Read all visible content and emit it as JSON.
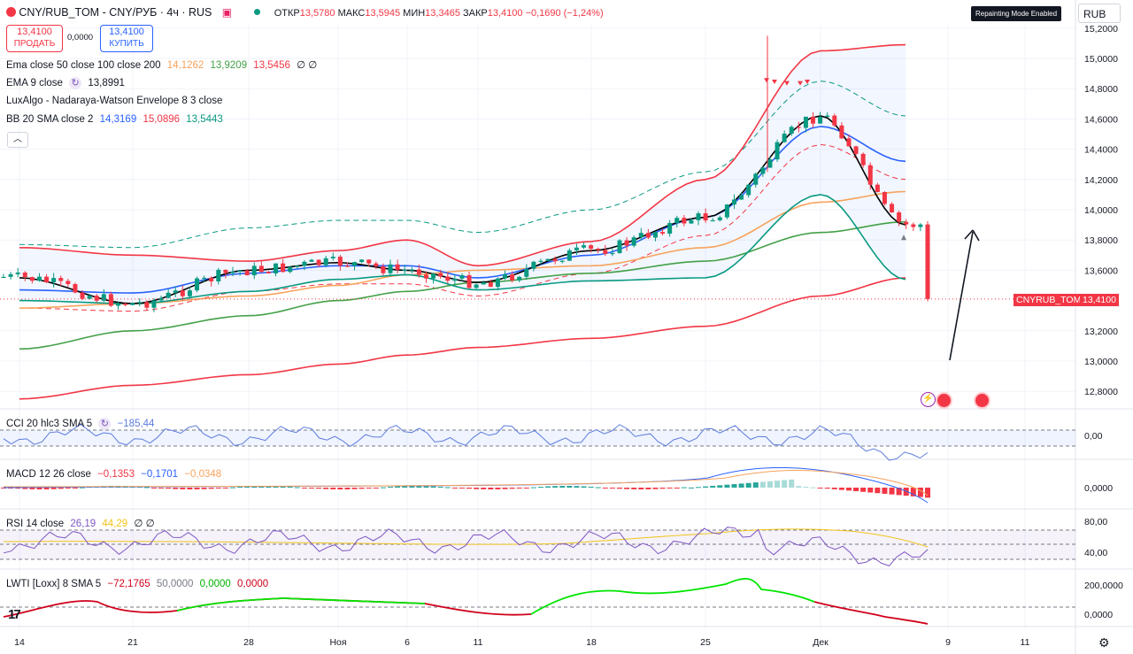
{
  "header": {
    "symbol_title": "CNY/RUB_TOM - CNY/РУБ · 4ч · RUS",
    "open_label": "ОТКР",
    "open": "13,5780",
    "high_label": "МАКС",
    "high": "13,5945",
    "low_label": "МИН",
    "low": "13,3465",
    "close_label": "ЗАКР",
    "close": "13,4100",
    "change": "−0,1690 (−1,24%)"
  },
  "trade": {
    "sell_price": "13,4100",
    "sell_label": "ПРОДАТЬ",
    "spread": "0,0000",
    "buy_price": "13,4100",
    "buy_label": "КУПИТЬ"
  },
  "indicators": {
    "ema": {
      "label": "Ema close 50 close 100 close 200",
      "v1": "14,1262",
      "v2": "13,9209",
      "v3": "13,5456",
      "v4": "∅ ∅"
    },
    "ema9": {
      "label": "EMA 9 close",
      "value": "13,8991"
    },
    "lux": {
      "label": "LuxAlgo - Nadaraya-Watson Envelope 8 3 close"
    },
    "bb": {
      "label": "BB 20 SMA close 2",
      "v1": "14,3169",
      "v2": "15,0896",
      "v3": "13,5443"
    }
  },
  "collapse_icon": "chevron-up-icon",
  "repaint_badge": "Repainting Mode Enabled",
  "currency_select": "RUB",
  "price_axis": {
    "ticks": [
      "15,2000",
      "15,0000",
      "14,8000",
      "14,6000",
      "14,4000",
      "14,2000",
      "14,0000",
      "13,8000",
      "13,6000",
      "13,2000",
      "13,0000",
      "12,8000"
    ]
  },
  "symbol_tag": "CNYRUB_TOM",
  "last_price_tag": "13,4100",
  "panes": {
    "cci": {
      "label": "CCI 20 hlc3 SMA 5",
      "value": "−185,44",
      "axis": "0,00"
    },
    "macd": {
      "label": "MACD 12 26 close",
      "v1": "−0,1353",
      "v2": "−0,1701",
      "v3": "−0,0348",
      "axis": "0,0000"
    },
    "rsi": {
      "label": "RSI 14 close",
      "v1": "26,19",
      "v2": "44,29",
      "v3": "∅ ∅",
      "axis1": "80,00",
      "axis2": "40,00"
    },
    "lwti": {
      "label": "LWTI [Loxx] 8 SMA 5",
      "v1": "−72,1765",
      "v2": "50,0000",
      "v3": "0,0000",
      "v4": "0,0000",
      "axis1": "200,0000",
      "axis2": "0,0000"
    }
  },
  "time_axis": [
    "14",
    "21",
    "28",
    "Ноя",
    "6",
    "11",
    "18",
    "25",
    "Дек",
    "9",
    "11"
  ],
  "colors": {
    "up": "#089981",
    "down": "#f23645",
    "ema50": "#f7a35c",
    "ema100": "#43a047",
    "ema200": "#f23645",
    "ema9": "#000000",
    "bb_basis": "#2962ff",
    "bb_upper": "#f23645",
    "bb_lower": "#089981",
    "cci": "#5c7cdb",
    "rsi": "#7e57c2",
    "lwti_up": "#00e600",
    "lwti_down": "#d0021b"
  },
  "chart_data": {
    "type": "line",
    "title": "CNY/RUB_TOM - CNY/РУБ · 4ч · RUS",
    "ylim": [
      12.7,
      15.25
    ],
    "x": [
      "14",
      "21",
      "28",
      "Ноя",
      "6",
      "11",
      "18",
      "25",
      "Дек"
    ],
    "series": [
      {
        "name": "Ema close 50",
        "x": [
          "14",
          "21",
          "28",
          "Ноя",
          "6",
          "11",
          "18",
          "25",
          "Дек",
          "Дек+6"
        ],
        "values": [
          13.35,
          13.38,
          13.43,
          13.5,
          13.57,
          13.6,
          13.63,
          13.75,
          14.05,
          14.12
        ]
      },
      {
        "name": "Ema close 100",
        "x": [
          "14",
          "21",
          "28",
          "Ноя",
          "6",
          "11",
          "18",
          "25",
          "Дек",
          "Дек+6"
        ],
        "values": [
          13.08,
          13.2,
          13.3,
          13.4,
          13.46,
          13.52,
          13.58,
          13.66,
          13.85,
          13.92
        ]
      },
      {
        "name": "Ema close 200",
        "x": [
          "14",
          "21",
          "28",
          "Ноя",
          "6",
          "11",
          "18",
          "25",
          "Дек",
          "Дек+6"
        ],
        "values": [
          12.75,
          12.84,
          12.91,
          12.98,
          13.04,
          13.09,
          13.15,
          13.23,
          13.43,
          13.55
        ]
      },
      {
        "name": "EMA 9 close",
        "x": [
          "14",
          "21",
          "28",
          "Ноя",
          "6",
          "11",
          "18",
          "25",
          "Дек",
          "Дек+6"
        ],
        "values": [
          13.55,
          13.38,
          13.6,
          13.65,
          13.6,
          13.52,
          13.73,
          13.95,
          14.62,
          13.9
        ]
      },
      {
        "name": "BB basis",
        "x": [
          "14",
          "21",
          "28",
          "Ноя",
          "6",
          "11",
          "18",
          "25",
          "Дек",
          "Дек+6"
        ],
        "values": [
          13.47,
          13.45,
          13.58,
          13.63,
          13.63,
          13.55,
          13.7,
          13.95,
          14.55,
          14.32
        ]
      },
      {
        "name": "BB upper",
        "x": [
          "14",
          "21",
          "28",
          "Ноя",
          "6",
          "11",
          "18",
          "25",
          "Дек",
          "Дек+6"
        ],
        "values": [
          13.75,
          13.7,
          13.66,
          13.73,
          13.8,
          13.63,
          13.79,
          14.2,
          15.05,
          15.09
        ]
      },
      {
        "name": "BB lower",
        "x": [
          "14",
          "21",
          "28",
          "Ноя",
          "6",
          "11",
          "18",
          "25",
          "Дек",
          "Дек+6"
        ],
        "values": [
          13.4,
          13.38,
          13.46,
          13.54,
          13.57,
          13.47,
          13.53,
          13.55,
          14.1,
          13.54
        ]
      }
    ],
    "last_close": 13.41
  }
}
